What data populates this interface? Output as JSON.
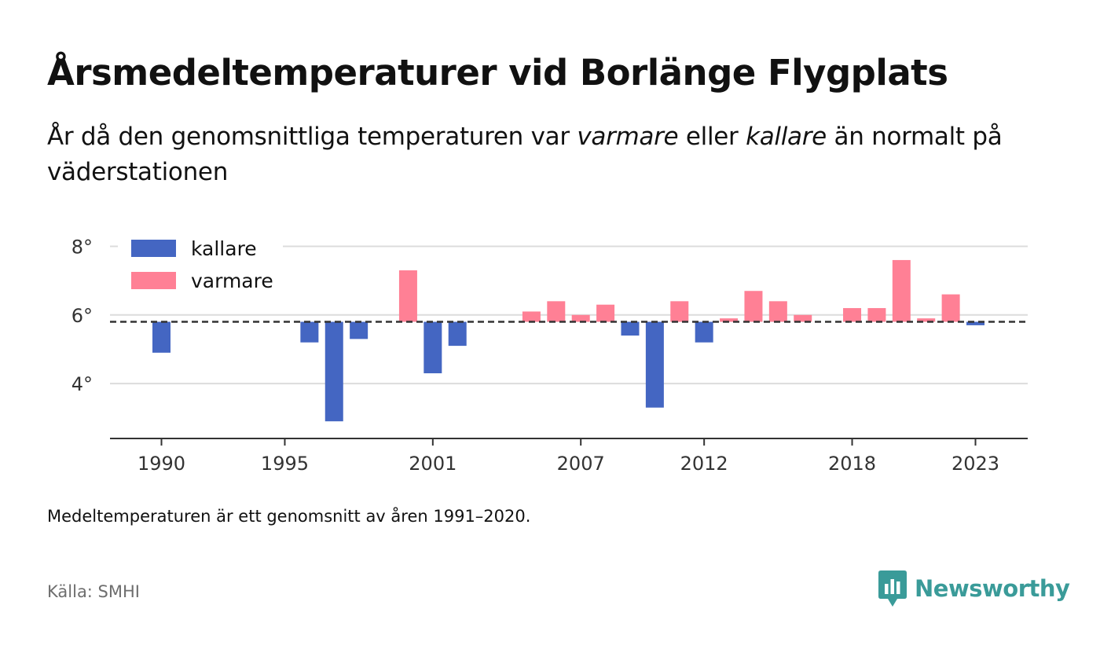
{
  "header": {
    "title": "Årsmedeltemperaturer vid Borlänge Flygplats",
    "subtitle_prefix": "År då den genomsnittliga temperaturen var ",
    "subtitle_warm": "varmare",
    "subtitle_mid": " eller ",
    "subtitle_cold": "kallare",
    "subtitle_suffix": " än normalt på väderstationen"
  },
  "footer": {
    "note": "Medeltemperaturen är ett genomsnitt av åren 1991–2020.",
    "source": "Källa: SMHI",
    "brand": "Newsworthy"
  },
  "colors": {
    "cold": "#4466c2",
    "warm": "#ff8095",
    "brand": "#3a9b99"
  },
  "chart_data": {
    "type": "bar",
    "title": "Årsmedeltemperaturer vid Borlänge Flygplats",
    "baseline": 5.8,
    "ylim": [
      2.4,
      8.4
    ],
    "y_ticks": [
      {
        "value": 4,
        "label": "4°"
      },
      {
        "value": 6,
        "label": "6°"
      },
      {
        "value": 8,
        "label": "8°"
      }
    ],
    "x_ticks": [
      1990,
      1995,
      2001,
      2007,
      2012,
      2018,
      2023
    ],
    "xlim": [
      1987.9,
      2025.1
    ],
    "grid": true,
    "legend": {
      "position": "top-left",
      "items": [
        {
          "label": "kallare",
          "color": "#4466c2"
        },
        {
          "label": "varmare",
          "color": "#ff8095"
        }
      ]
    },
    "series": [
      {
        "name": "kallare",
        "points": [
          {
            "year": 1990,
            "value": 4.9
          },
          {
            "year": 1996,
            "value": 5.2
          },
          {
            "year": 1997,
            "value": 2.9
          },
          {
            "year": 1998,
            "value": 5.3
          },
          {
            "year": 2001,
            "value": 4.3
          },
          {
            "year": 2002,
            "value": 5.1
          },
          {
            "year": 2009,
            "value": 5.4
          },
          {
            "year": 2010,
            "value": 3.3
          },
          {
            "year": 2012,
            "value": 5.2
          },
          {
            "year": 2023,
            "value": 5.7
          }
        ]
      },
      {
        "name": "varmare",
        "points": [
          {
            "year": 2000,
            "value": 7.3
          },
          {
            "year": 2005,
            "value": 6.1
          },
          {
            "year": 2006,
            "value": 6.4
          },
          {
            "year": 2007,
            "value": 6.0
          },
          {
            "year": 2008,
            "value": 6.3
          },
          {
            "year": 2011,
            "value": 6.4
          },
          {
            "year": 2013,
            "value": 5.9
          },
          {
            "year": 2014,
            "value": 6.7
          },
          {
            "year": 2015,
            "value": 6.4
          },
          {
            "year": 2016,
            "value": 6.0
          },
          {
            "year": 2018,
            "value": 6.2
          },
          {
            "year": 2019,
            "value": 6.2
          },
          {
            "year": 2020,
            "value": 7.6
          },
          {
            "year": 2021,
            "value": 5.9
          },
          {
            "year": 2022,
            "value": 6.6
          }
        ]
      }
    ]
  }
}
